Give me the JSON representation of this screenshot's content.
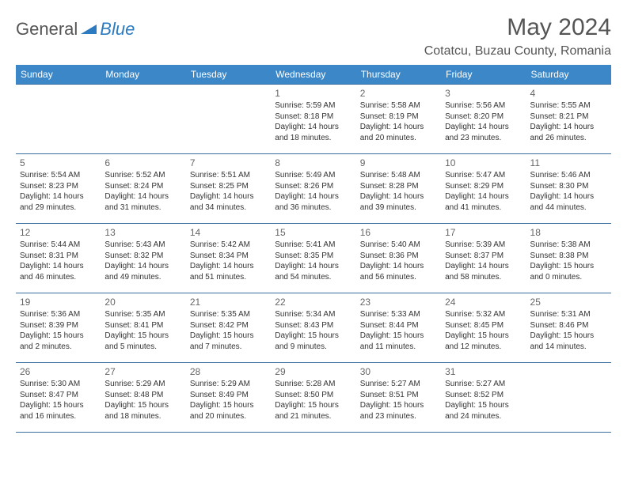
{
  "brand": {
    "part1": "General",
    "part2": "Blue"
  },
  "title": "May 2024",
  "location": "Cotatcu, Buzau County, Romania",
  "colors": {
    "header_bg": "#3b87c8",
    "header_text": "#ffffff",
    "border": "#3b6fa0",
    "brand_blue": "#2c7bc0",
    "text": "#333333",
    "page_bg": "#ffffff"
  },
  "day_headers": [
    "Sunday",
    "Monday",
    "Tuesday",
    "Wednesday",
    "Thursday",
    "Friday",
    "Saturday"
  ],
  "weeks": [
    [
      {
        "num": "",
        "sunrise": "",
        "sunset": "",
        "daylight1": "",
        "daylight2": ""
      },
      {
        "num": "",
        "sunrise": "",
        "sunset": "",
        "daylight1": "",
        "daylight2": ""
      },
      {
        "num": "",
        "sunrise": "",
        "sunset": "",
        "daylight1": "",
        "daylight2": ""
      },
      {
        "num": "1",
        "sunrise": "Sunrise: 5:59 AM",
        "sunset": "Sunset: 8:18 PM",
        "daylight1": "Daylight: 14 hours",
        "daylight2": "and 18 minutes."
      },
      {
        "num": "2",
        "sunrise": "Sunrise: 5:58 AM",
        "sunset": "Sunset: 8:19 PM",
        "daylight1": "Daylight: 14 hours",
        "daylight2": "and 20 minutes."
      },
      {
        "num": "3",
        "sunrise": "Sunrise: 5:56 AM",
        "sunset": "Sunset: 8:20 PM",
        "daylight1": "Daylight: 14 hours",
        "daylight2": "and 23 minutes."
      },
      {
        "num": "4",
        "sunrise": "Sunrise: 5:55 AM",
        "sunset": "Sunset: 8:21 PM",
        "daylight1": "Daylight: 14 hours",
        "daylight2": "and 26 minutes."
      }
    ],
    [
      {
        "num": "5",
        "sunrise": "Sunrise: 5:54 AM",
        "sunset": "Sunset: 8:23 PM",
        "daylight1": "Daylight: 14 hours",
        "daylight2": "and 29 minutes."
      },
      {
        "num": "6",
        "sunrise": "Sunrise: 5:52 AM",
        "sunset": "Sunset: 8:24 PM",
        "daylight1": "Daylight: 14 hours",
        "daylight2": "and 31 minutes."
      },
      {
        "num": "7",
        "sunrise": "Sunrise: 5:51 AM",
        "sunset": "Sunset: 8:25 PM",
        "daylight1": "Daylight: 14 hours",
        "daylight2": "and 34 minutes."
      },
      {
        "num": "8",
        "sunrise": "Sunrise: 5:49 AM",
        "sunset": "Sunset: 8:26 PM",
        "daylight1": "Daylight: 14 hours",
        "daylight2": "and 36 minutes."
      },
      {
        "num": "9",
        "sunrise": "Sunrise: 5:48 AM",
        "sunset": "Sunset: 8:28 PM",
        "daylight1": "Daylight: 14 hours",
        "daylight2": "and 39 minutes."
      },
      {
        "num": "10",
        "sunrise": "Sunrise: 5:47 AM",
        "sunset": "Sunset: 8:29 PM",
        "daylight1": "Daylight: 14 hours",
        "daylight2": "and 41 minutes."
      },
      {
        "num": "11",
        "sunrise": "Sunrise: 5:46 AM",
        "sunset": "Sunset: 8:30 PM",
        "daylight1": "Daylight: 14 hours",
        "daylight2": "and 44 minutes."
      }
    ],
    [
      {
        "num": "12",
        "sunrise": "Sunrise: 5:44 AM",
        "sunset": "Sunset: 8:31 PM",
        "daylight1": "Daylight: 14 hours",
        "daylight2": "and 46 minutes."
      },
      {
        "num": "13",
        "sunrise": "Sunrise: 5:43 AM",
        "sunset": "Sunset: 8:32 PM",
        "daylight1": "Daylight: 14 hours",
        "daylight2": "and 49 minutes."
      },
      {
        "num": "14",
        "sunrise": "Sunrise: 5:42 AM",
        "sunset": "Sunset: 8:34 PM",
        "daylight1": "Daylight: 14 hours",
        "daylight2": "and 51 minutes."
      },
      {
        "num": "15",
        "sunrise": "Sunrise: 5:41 AM",
        "sunset": "Sunset: 8:35 PM",
        "daylight1": "Daylight: 14 hours",
        "daylight2": "and 54 minutes."
      },
      {
        "num": "16",
        "sunrise": "Sunrise: 5:40 AM",
        "sunset": "Sunset: 8:36 PM",
        "daylight1": "Daylight: 14 hours",
        "daylight2": "and 56 minutes."
      },
      {
        "num": "17",
        "sunrise": "Sunrise: 5:39 AM",
        "sunset": "Sunset: 8:37 PM",
        "daylight1": "Daylight: 14 hours",
        "daylight2": "and 58 minutes."
      },
      {
        "num": "18",
        "sunrise": "Sunrise: 5:38 AM",
        "sunset": "Sunset: 8:38 PM",
        "daylight1": "Daylight: 15 hours",
        "daylight2": "and 0 minutes."
      }
    ],
    [
      {
        "num": "19",
        "sunrise": "Sunrise: 5:36 AM",
        "sunset": "Sunset: 8:39 PM",
        "daylight1": "Daylight: 15 hours",
        "daylight2": "and 2 minutes."
      },
      {
        "num": "20",
        "sunrise": "Sunrise: 5:35 AM",
        "sunset": "Sunset: 8:41 PM",
        "daylight1": "Daylight: 15 hours",
        "daylight2": "and 5 minutes."
      },
      {
        "num": "21",
        "sunrise": "Sunrise: 5:35 AM",
        "sunset": "Sunset: 8:42 PM",
        "daylight1": "Daylight: 15 hours",
        "daylight2": "and 7 minutes."
      },
      {
        "num": "22",
        "sunrise": "Sunrise: 5:34 AM",
        "sunset": "Sunset: 8:43 PM",
        "daylight1": "Daylight: 15 hours",
        "daylight2": "and 9 minutes."
      },
      {
        "num": "23",
        "sunrise": "Sunrise: 5:33 AM",
        "sunset": "Sunset: 8:44 PM",
        "daylight1": "Daylight: 15 hours",
        "daylight2": "and 11 minutes."
      },
      {
        "num": "24",
        "sunrise": "Sunrise: 5:32 AM",
        "sunset": "Sunset: 8:45 PM",
        "daylight1": "Daylight: 15 hours",
        "daylight2": "and 12 minutes."
      },
      {
        "num": "25",
        "sunrise": "Sunrise: 5:31 AM",
        "sunset": "Sunset: 8:46 PM",
        "daylight1": "Daylight: 15 hours",
        "daylight2": "and 14 minutes."
      }
    ],
    [
      {
        "num": "26",
        "sunrise": "Sunrise: 5:30 AM",
        "sunset": "Sunset: 8:47 PM",
        "daylight1": "Daylight: 15 hours",
        "daylight2": "and 16 minutes."
      },
      {
        "num": "27",
        "sunrise": "Sunrise: 5:29 AM",
        "sunset": "Sunset: 8:48 PM",
        "daylight1": "Daylight: 15 hours",
        "daylight2": "and 18 minutes."
      },
      {
        "num": "28",
        "sunrise": "Sunrise: 5:29 AM",
        "sunset": "Sunset: 8:49 PM",
        "daylight1": "Daylight: 15 hours",
        "daylight2": "and 20 minutes."
      },
      {
        "num": "29",
        "sunrise": "Sunrise: 5:28 AM",
        "sunset": "Sunset: 8:50 PM",
        "daylight1": "Daylight: 15 hours",
        "daylight2": "and 21 minutes."
      },
      {
        "num": "30",
        "sunrise": "Sunrise: 5:27 AM",
        "sunset": "Sunset: 8:51 PM",
        "daylight1": "Daylight: 15 hours",
        "daylight2": "and 23 minutes."
      },
      {
        "num": "31",
        "sunrise": "Sunrise: 5:27 AM",
        "sunset": "Sunset: 8:52 PM",
        "daylight1": "Daylight: 15 hours",
        "daylight2": "and 24 minutes."
      },
      {
        "num": "",
        "sunrise": "",
        "sunset": "",
        "daylight1": "",
        "daylight2": ""
      }
    ]
  ]
}
